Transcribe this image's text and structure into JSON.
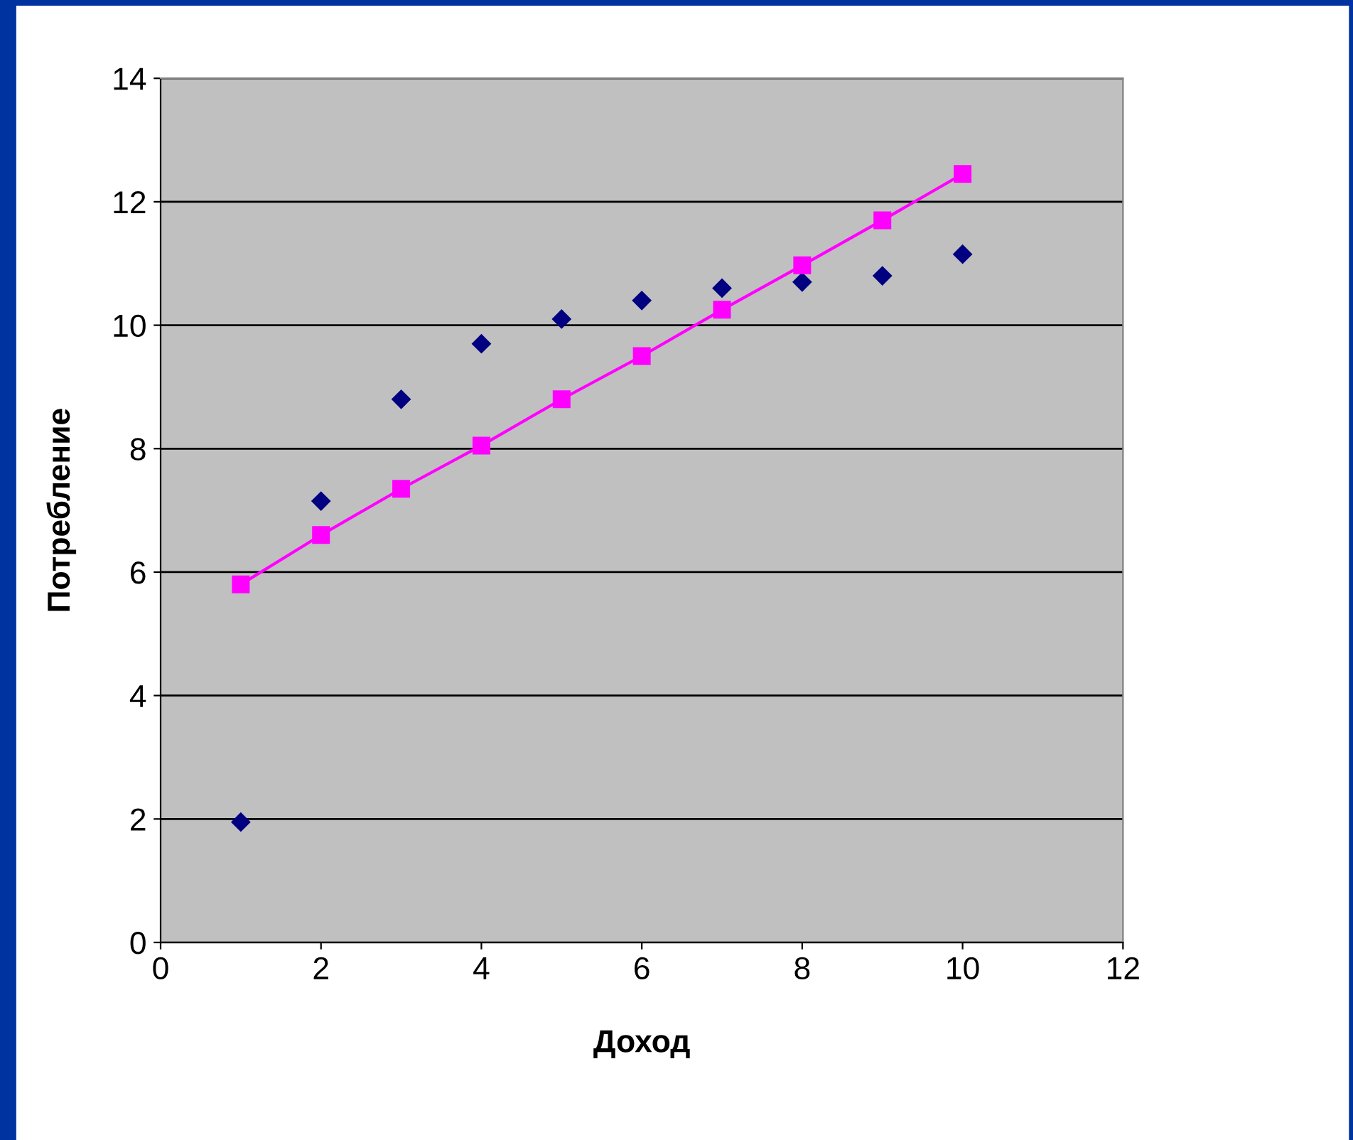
{
  "chart_data": {
    "type": "scatter",
    "xlabel": "Доход",
    "ylabel": "Потребление",
    "x": [
      1,
      2,
      3,
      4,
      5,
      6,
      7,
      8,
      9,
      10
    ],
    "series": [
      {
        "marker": "diamond",
        "color": "#000080",
        "values": [
          1.95,
          7.15,
          8.8,
          9.7,
          10.1,
          10.4,
          10.6,
          10.7,
          10.8,
          11.15
        ]
      },
      {
        "type": "line",
        "marker": "square",
        "color": "#ff00ff",
        "values": [
          5.8,
          6.6,
          7.35,
          8.05,
          8.8,
          9.5,
          10.25,
          10.97,
          11.7,
          12.45
        ]
      }
    ],
    "xlim": [
      0,
      12
    ],
    "xticks": [
      0,
      2,
      4,
      6,
      8,
      10,
      12
    ],
    "ylim": [
      0,
      14
    ],
    "yticks": [
      0,
      2,
      4,
      6,
      8,
      10,
      12,
      14
    ],
    "grid": "y",
    "legend": false
  }
}
